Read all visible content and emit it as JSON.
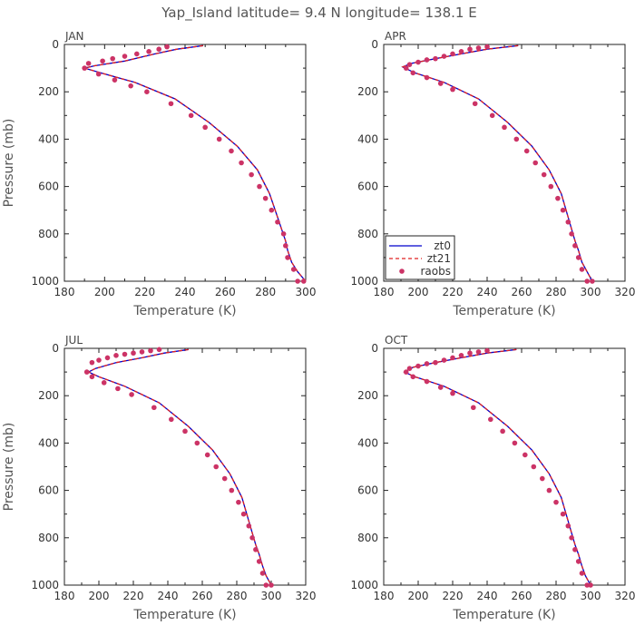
{
  "figure": {
    "title": "Yap_Island   latitude=  9.4  N longitude=  138.1  E"
  },
  "chart_data": [
    {
      "type": "line",
      "panel_title": "JAN",
      "xlabel": "Temperature  (K)",
      "ylabel": "Pressure  (mb)",
      "xlim": [
        180,
        300
      ],
      "xticks": [
        180,
        200,
        220,
        240,
        260,
        280,
        300
      ],
      "ylim": [
        1000,
        0
      ],
      "yticks": [
        0,
        200,
        400,
        600,
        800,
        1000
      ],
      "legend": null,
      "series": [
        {
          "name": "zt0",
          "color": "#0000cc",
          "style": "solid",
          "x": [
            249,
            236,
            225,
            210,
            195,
            190,
            198,
            215,
            235,
            252,
            266,
            276,
            282,
            286,
            288,
            290,
            291,
            293,
            296,
            300
          ],
          "y": [
            5,
            20,
            40,
            70,
            90,
            100,
            120,
            160,
            230,
            330,
            430,
            530,
            630,
            730,
            780,
            830,
            870,
            920,
            960,
            1000
          ]
        },
        {
          "name": "zt21",
          "color": "#e02020",
          "style": "dashed",
          "x": [
            249,
            236,
            225,
            210,
            195,
            190,
            198,
            215,
            235,
            252,
            266,
            276,
            282,
            286,
            288,
            290,
            291,
            293,
            296,
            300
          ],
          "y": [
            5,
            20,
            40,
            70,
            90,
            100,
            120,
            160,
            230,
            330,
            430,
            530,
            630,
            730,
            780,
            830,
            870,
            920,
            960,
            1000
          ]
        },
        {
          "name": "raobs",
          "color": "#cc3366",
          "style": "points",
          "x": [
            231,
            227,
            222,
            216,
            210,
            204,
            199,
            192,
            190,
            197,
            205,
            213,
            221,
            233,
            243,
            250,
            257,
            263,
            268,
            273,
            277,
            280,
            283,
            286,
            289,
            290,
            291,
            294,
            296,
            299
          ],
          "y": [
            10,
            20,
            30,
            40,
            50,
            60,
            70,
            80,
            100,
            125,
            150,
            175,
            200,
            250,
            300,
            350,
            400,
            450,
            500,
            550,
            600,
            650,
            700,
            750,
            800,
            850,
            900,
            950,
            1000,
            1000
          ]
        }
      ]
    },
    {
      "type": "line",
      "panel_title": "APR",
      "xlabel": "Temperature  (K)",
      "ylabel": "",
      "xlim": [
        180,
        320
      ],
      "xticks": [
        180,
        200,
        220,
        240,
        260,
        280,
        300,
        320
      ],
      "ylim": [
        1000,
        0
      ],
      "yticks": [
        0,
        200,
        400,
        600,
        800,
        1000
      ],
      "legend": {
        "position": "bottom-left",
        "entries": [
          "zt0",
          "zt21",
          "raobs"
        ]
      },
      "series": [
        {
          "name": "zt0",
          "color": "#0000cc",
          "style": "solid",
          "x": [
            258,
            240,
            225,
            210,
            196,
            191,
            198,
            215,
            235,
            252,
            266,
            276,
            283,
            287,
            289,
            291,
            293,
            295,
            298,
            301
          ],
          "y": [
            5,
            20,
            40,
            60,
            80,
            95,
            120,
            160,
            230,
            330,
            430,
            530,
            630,
            730,
            780,
            830,
            870,
            920,
            960,
            1000
          ]
        },
        {
          "name": "zt21",
          "color": "#e02020",
          "style": "dashed",
          "x": [
            258,
            240,
            225,
            210,
            196,
            191,
            198,
            215,
            235,
            252,
            266,
            276,
            283,
            287,
            289,
            291,
            293,
            295,
            298,
            301
          ],
          "y": [
            5,
            20,
            40,
            60,
            80,
            95,
            120,
            160,
            230,
            330,
            430,
            530,
            630,
            730,
            780,
            830,
            870,
            920,
            960,
            1000
          ]
        },
        {
          "name": "raobs",
          "color": "#cc3366",
          "style": "points",
          "x": [
            240,
            235,
            230,
            225,
            220,
            215,
            210,
            205,
            200,
            195,
            193,
            197,
            205,
            213,
            220,
            233,
            243,
            250,
            257,
            263,
            268,
            273,
            277,
            281,
            284,
            287,
            289,
            291,
            293,
            295,
            298,
            301
          ],
          "y": [
            10,
            15,
            20,
            30,
            40,
            50,
            60,
            65,
            75,
            85,
            100,
            120,
            140,
            165,
            190,
            250,
            300,
            350,
            400,
            450,
            500,
            550,
            600,
            650,
            700,
            750,
            800,
            850,
            900,
            950,
            1000,
            1000
          ]
        }
      ]
    },
    {
      "type": "line",
      "panel_title": "JUL",
      "xlabel": "Temperature  (K)",
      "ylabel": "Pressure  (mb)",
      "xlim": [
        180,
        320
      ],
      "xticks": [
        180,
        200,
        220,
        240,
        260,
        280,
        300,
        320
      ],
      "ylim": [
        1000,
        0
      ],
      "yticks": [
        0,
        200,
        400,
        600,
        800,
        1000
      ],
      "legend": null,
      "series": [
        {
          "name": "zt0",
          "color": "#0000cc",
          "style": "solid",
          "x": [
            252,
            238,
            225,
            210,
            198,
            194,
            200,
            215,
            235,
            252,
            266,
            276,
            283,
            287,
            289,
            291,
            293,
            295,
            297,
            300
          ],
          "y": [
            5,
            20,
            40,
            60,
            85,
            100,
            120,
            160,
            230,
            330,
            430,
            530,
            630,
            730,
            780,
            830,
            870,
            920,
            960,
            1000
          ]
        },
        {
          "name": "zt21",
          "color": "#e02020",
          "style": "dashed",
          "x": [
            252,
            238,
            225,
            210,
            198,
            194,
            200,
            215,
            235,
            252,
            266,
            276,
            283,
            287,
            289,
            291,
            293,
            295,
            297,
            300
          ],
          "y": [
            5,
            20,
            40,
            60,
            85,
            100,
            120,
            160,
            230,
            330,
            430,
            530,
            630,
            730,
            780,
            830,
            870,
            920,
            960,
            1000
          ]
        },
        {
          "name": "raobs",
          "color": "#cc3366",
          "style": "points",
          "x": [
            235,
            230,
            225,
            220,
            215,
            210,
            205,
            200,
            196,
            193,
            196,
            203,
            211,
            219,
            232,
            242,
            250,
            257,
            263,
            268,
            273,
            277,
            281,
            284,
            287,
            289,
            291,
            293,
            295,
            297,
            300
          ],
          "y": [
            5,
            10,
            15,
            20,
            25,
            30,
            40,
            50,
            60,
            100,
            120,
            145,
            170,
            195,
            250,
            300,
            350,
            400,
            450,
            500,
            550,
            600,
            650,
            700,
            750,
            800,
            850,
            900,
            950,
            1000,
            1000
          ]
        }
      ]
    },
    {
      "type": "line",
      "panel_title": "OCT",
      "xlabel": "Temperature  (K)",
      "ylabel": "",
      "xlim": [
        180,
        320
      ],
      "xticks": [
        180,
        200,
        220,
        240,
        260,
        280,
        300,
        320
      ],
      "ylim": [
        1000,
        0
      ],
      "yticks": [
        0,
        200,
        400,
        600,
        800,
        1000
      ],
      "legend": null,
      "series": [
        {
          "name": "zt0",
          "color": "#0000cc",
          "style": "solid",
          "x": [
            257,
            240,
            225,
            210,
            197,
            192,
            198,
            215,
            235,
            252,
            266,
            276,
            283,
            287,
            289,
            291,
            293,
            295,
            297,
            300
          ],
          "y": [
            5,
            20,
            40,
            60,
            80,
            100,
            120,
            160,
            230,
            330,
            430,
            530,
            630,
            730,
            780,
            830,
            870,
            920,
            960,
            1000
          ]
        },
        {
          "name": "zt21",
          "color": "#e02020",
          "style": "dashed",
          "x": [
            257,
            240,
            225,
            210,
            197,
            192,
            198,
            215,
            235,
            252,
            266,
            276,
            283,
            287,
            289,
            291,
            293,
            295,
            297,
            300
          ],
          "y": [
            5,
            20,
            40,
            60,
            80,
            100,
            120,
            160,
            230,
            330,
            430,
            530,
            630,
            730,
            780,
            830,
            870,
            920,
            960,
            1000
          ]
        },
        {
          "name": "raobs",
          "color": "#cc3366",
          "style": "points",
          "x": [
            240,
            235,
            230,
            225,
            220,
            215,
            210,
            205,
            200,
            195,
            193,
            197,
            205,
            213,
            220,
            232,
            242,
            249,
            256,
            262,
            267,
            272,
            276,
            280,
            284,
            287,
            289,
            291,
            293,
            295,
            298,
            300
          ],
          "y": [
            10,
            15,
            20,
            30,
            40,
            50,
            60,
            65,
            75,
            85,
            100,
            120,
            140,
            165,
            190,
            250,
            300,
            350,
            400,
            450,
            500,
            550,
            600,
            650,
            700,
            750,
            800,
            850,
            900,
            950,
            1000,
            1000
          ]
        }
      ]
    }
  ]
}
